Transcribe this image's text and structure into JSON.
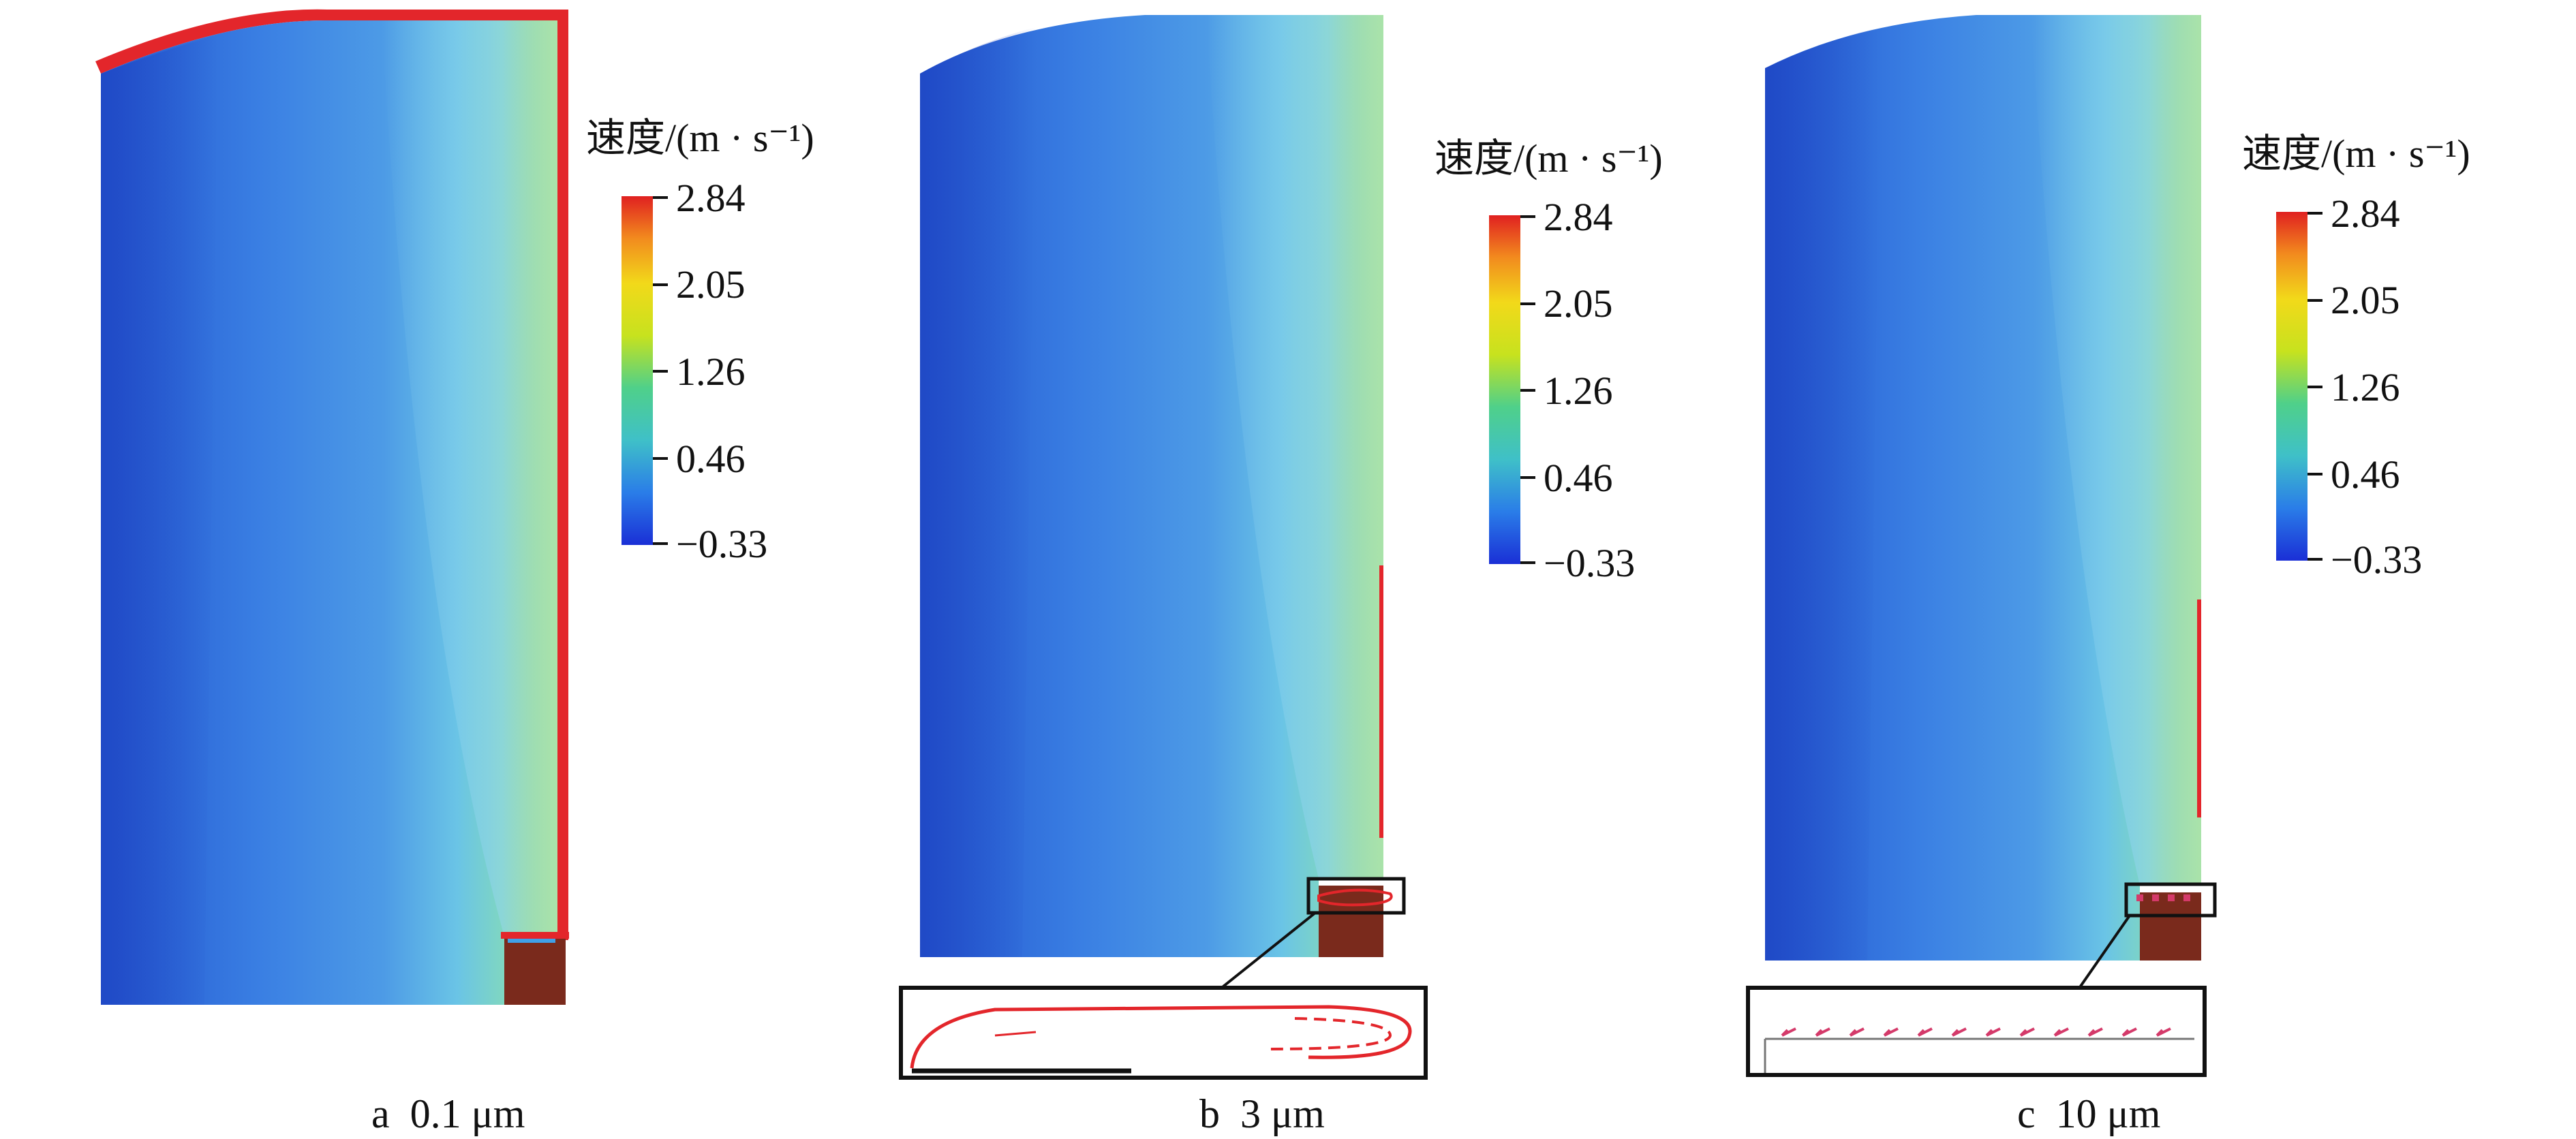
{
  "colorbar": {
    "title": "速度/(m · s⁻¹)",
    "ticks": [
      "2.84",
      "2.05",
      "1.26",
      "0.46",
      "−0.33"
    ],
    "min": -0.33,
    "max": 2.84,
    "colors": [
      "#1a2fd6",
      "#2a7de8",
      "#3fc0c8",
      "#4fd08a",
      "#7ed23a",
      "#c7e21e",
      "#f2d91a",
      "#f28a1e",
      "#e02020"
    ]
  },
  "panels": [
    {
      "id": "a",
      "caption": "a  0.1 μm",
      "inset": "none"
    },
    {
      "id": "b",
      "caption": "b  3 μm",
      "inset": "vortex"
    },
    {
      "id": "c",
      "caption": "c  10 μm",
      "inset": "arrows"
    }
  ],
  "colors": {
    "field_dark": "#2a5fd4",
    "field_mid": "#3f86e6",
    "field_light": "#6fc0e6",
    "wall_hot": "#e3262b",
    "obstacle": "#7a2a1c",
    "wall_band": "#9bd832"
  }
}
